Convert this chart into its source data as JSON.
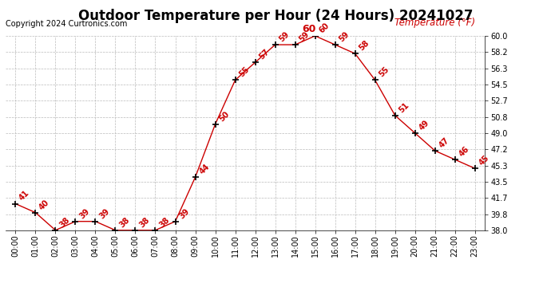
{
  "title": "Outdoor Temperature per Hour (24 Hours) 20241027",
  "copyright": "Copyright 2024 Curtronics.com",
  "legend_label": "Temperature (°F)",
  "hours": [
    "00:00",
    "01:00",
    "02:00",
    "03:00",
    "04:00",
    "05:00",
    "06:00",
    "07:00",
    "08:00",
    "09:00",
    "10:00",
    "11:00",
    "12:00",
    "13:00",
    "14:00",
    "15:00",
    "16:00",
    "17:00",
    "18:00",
    "19:00",
    "20:00",
    "21:00",
    "22:00",
    "23:00"
  ],
  "temps": [
    41,
    40,
    38,
    39,
    39,
    38,
    38,
    38,
    39,
    44,
    50,
    55,
    57,
    59,
    59,
    60,
    59,
    58,
    55,
    51,
    49,
    47,
    46,
    45
  ],
  "line_color": "#cc0000",
  "marker": "+",
  "marker_size": 6,
  "marker_color": "#000000",
  "label_color": "#cc0000",
  "title_fontsize": 12,
  "copyright_fontsize": 7,
  "legend_fontsize": 8.5,
  "tick_fontsize": 7,
  "ylim": [
    38.0,
    60.0
  ],
  "yticks": [
    38.0,
    39.8,
    41.7,
    43.5,
    45.3,
    47.2,
    49.0,
    50.8,
    52.7,
    54.5,
    56.3,
    58.2,
    60.0
  ],
  "bg_color": "#ffffff",
  "grid_color": "#bbbbbb",
  "data_label_fontsize": 7,
  "data_label_rotation": 45
}
